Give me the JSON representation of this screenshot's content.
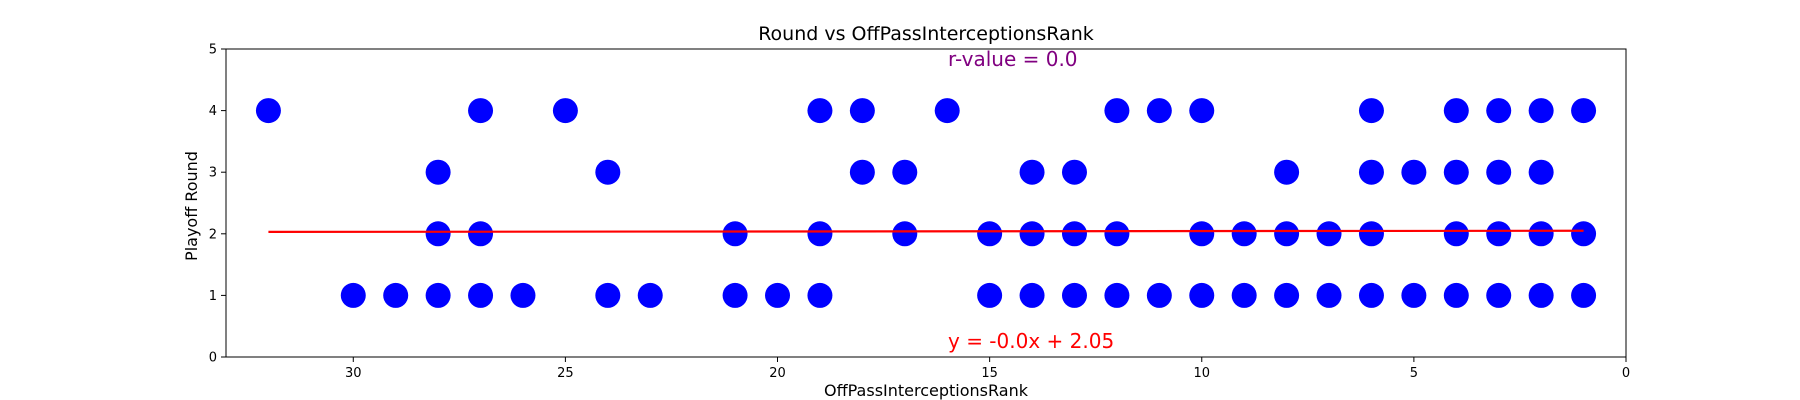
{
  "chart_data": {
    "type": "scatter",
    "title": "Round vs OffPassInterceptionsRank",
    "xlabel": "OffPassInterceptionsRank",
    "ylabel": "Playoff Round",
    "xlim": [
      33,
      0
    ],
    "ylim": [
      0,
      5
    ],
    "x_inverted": true,
    "xticks": [
      30,
      25,
      20,
      15,
      10,
      5,
      0
    ],
    "yticks": [
      0,
      1,
      2,
      3,
      4,
      5
    ],
    "grid": false,
    "marker_color": "#0000ff",
    "line_color": "#ff0000",
    "rvalue_color": "#800080",
    "points": [
      {
        "x": 32,
        "y": 4
      },
      {
        "x": 30,
        "y": 1
      },
      {
        "x": 29,
        "y": 1
      },
      {
        "x": 28,
        "y": 1
      },
      {
        "x": 28,
        "y": 2
      },
      {
        "x": 28,
        "y": 3
      },
      {
        "x": 27,
        "y": 1
      },
      {
        "x": 27,
        "y": 2
      },
      {
        "x": 27,
        "y": 4
      },
      {
        "x": 26,
        "y": 1
      },
      {
        "x": 25,
        "y": 4
      },
      {
        "x": 24,
        "y": 1
      },
      {
        "x": 24,
        "y": 3
      },
      {
        "x": 23,
        "y": 1
      },
      {
        "x": 21,
        "y": 1
      },
      {
        "x": 21,
        "y": 2
      },
      {
        "x": 20,
        "y": 1
      },
      {
        "x": 19,
        "y": 1
      },
      {
        "x": 19,
        "y": 2
      },
      {
        "x": 19,
        "y": 4
      },
      {
        "x": 18,
        "y": 3
      },
      {
        "x": 18,
        "y": 4
      },
      {
        "x": 17,
        "y": 2
      },
      {
        "x": 17,
        "y": 3
      },
      {
        "x": 16,
        "y": 4
      },
      {
        "x": 15,
        "y": 1
      },
      {
        "x": 15,
        "y": 2
      },
      {
        "x": 14,
        "y": 1
      },
      {
        "x": 14,
        "y": 2
      },
      {
        "x": 14,
        "y": 3
      },
      {
        "x": 13,
        "y": 1
      },
      {
        "x": 13,
        "y": 2
      },
      {
        "x": 13,
        "y": 3
      },
      {
        "x": 12,
        "y": 1
      },
      {
        "x": 12,
        "y": 2
      },
      {
        "x": 12,
        "y": 4
      },
      {
        "x": 11,
        "y": 1
      },
      {
        "x": 11,
        "y": 4
      },
      {
        "x": 10,
        "y": 1
      },
      {
        "x": 10,
        "y": 2
      },
      {
        "x": 10,
        "y": 4
      },
      {
        "x": 9,
        "y": 1
      },
      {
        "x": 9,
        "y": 2
      },
      {
        "x": 8,
        "y": 1
      },
      {
        "x": 8,
        "y": 2
      },
      {
        "x": 8,
        "y": 3
      },
      {
        "x": 7,
        "y": 1
      },
      {
        "x": 7,
        "y": 2
      },
      {
        "x": 6,
        "y": 1
      },
      {
        "x": 6,
        "y": 2
      },
      {
        "x": 6,
        "y": 3
      },
      {
        "x": 6,
        "y": 4
      },
      {
        "x": 5,
        "y": 1
      },
      {
        "x": 5,
        "y": 3
      },
      {
        "x": 4,
        "y": 1
      },
      {
        "x": 4,
        "y": 2
      },
      {
        "x": 4,
        "y": 3
      },
      {
        "x": 4,
        "y": 4
      },
      {
        "x": 3,
        "y": 1
      },
      {
        "x": 3,
        "y": 2
      },
      {
        "x": 3,
        "y": 3
      },
      {
        "x": 3,
        "y": 4
      },
      {
        "x": 2,
        "y": 1
      },
      {
        "x": 2,
        "y": 2
      },
      {
        "x": 2,
        "y": 3
      },
      {
        "x": 2,
        "y": 4
      },
      {
        "x": 1,
        "y": 1
      },
      {
        "x": 1,
        "y": 2
      },
      {
        "x": 1,
        "y": 4
      }
    ],
    "regression": {
      "slope": -0.0006,
      "intercept": 2.05,
      "x_range": [
        32,
        1
      ]
    },
    "annotations": {
      "rvalue": "r-value = 0.0",
      "equation": "y = -0.0x + 2.05"
    }
  }
}
